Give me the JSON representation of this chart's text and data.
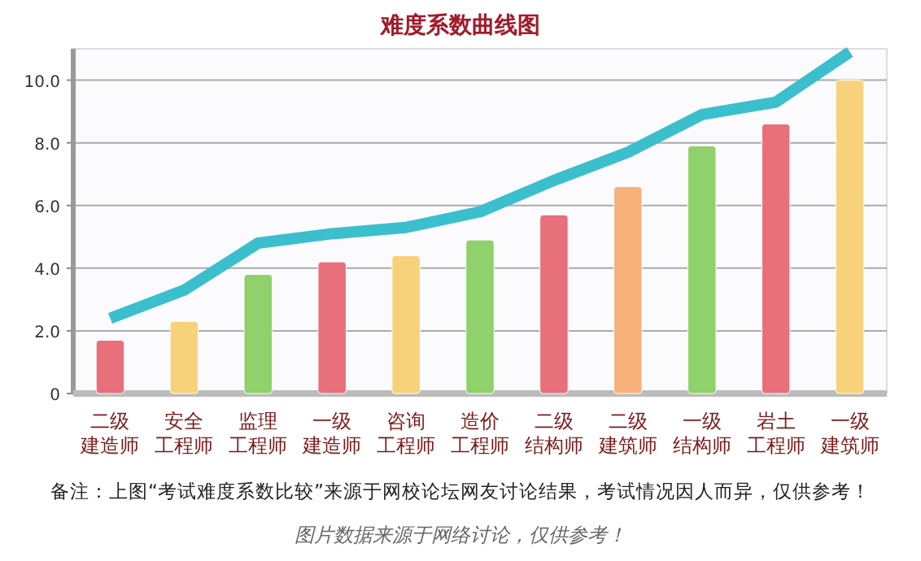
{
  "chart_data": {
    "type": "bar",
    "title": "难度系数曲线图",
    "categories": [
      "二级建造师",
      "安全工程师",
      "监理工程师",
      "一级建造师",
      "咨询工程师",
      "造价工程师",
      "二级结构师",
      "二级建筑师",
      "一级结构师",
      "岩土工程师",
      "一级建筑师"
    ],
    "series": [
      {
        "colors": [
          "#e8707a",
          "#f8d27a",
          "#8fd16a",
          "#e8707a",
          "#f8d27a",
          "#8fd16a",
          "#e8707a",
          "#f6b27a",
          "#8fd16a",
          "#e8707a",
          "#f8d27a"
        ],
        "values": [
          1.7,
          2.3,
          3.8,
          4.2,
          4.4,
          4.9,
          5.7,
          6.6,
          7.9,
          8.6,
          10.0
        ]
      },
      {
        "type": "line",
        "color": "#3bbfcc",
        "values": [
          2.4,
          3.3,
          4.8,
          5.1,
          5.3,
          5.8,
          6.8,
          7.7,
          8.9,
          9.3,
          10.9
        ]
      }
    ],
    "ylim": [
      0,
      11
    ],
    "yticks": [
      0,
      {
        "value": 2,
        "label": "2.0"
      },
      {
        "value": 4,
        "label": "4.0"
      },
      {
        "value": 6,
        "label": "6.0"
      },
      {
        "value": 8,
        "label": "8.0"
      },
      {
        "value": 10,
        "label": "10.0"
      }
    ],
    "grid": "y",
    "marker": "none",
    "line_style": "solid",
    "annotations": [
      "备注：上图“考试难度系数比较”来源于网校论坛网友讨论结果，考试情况因人而异，仅供参考！",
      "图片数据来源于网络讨论，仅供参考！"
    ]
  }
}
